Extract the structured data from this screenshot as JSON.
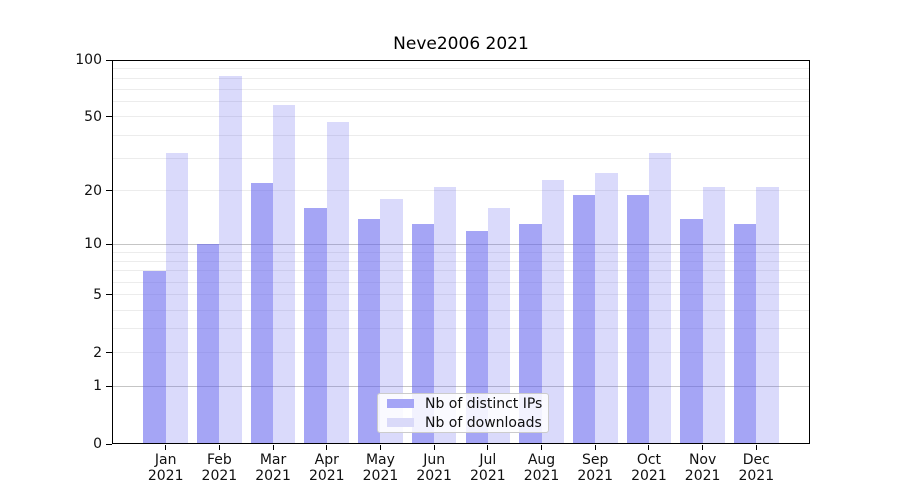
{
  "chart_data": {
    "type": "bar",
    "title": "Neve2006 2021",
    "categories": [
      "Jan",
      "Feb",
      "Mar",
      "Apr",
      "May",
      "Jun",
      "Jul",
      "Aug",
      "Sep",
      "Oct",
      "Nov",
      "Dec"
    ],
    "x_year_label": "2021",
    "series": [
      {
        "name": "Nb of distinct IPs",
        "values": [
          7,
          10,
          22,
          16,
          14,
          13,
          12,
          13,
          19,
          19,
          14,
          13
        ],
        "bar_color": "rgba(95,95,238,0.56)",
        "legend_swatch_color": "#a5a5f6"
      },
      {
        "name": "Nb of downloads",
        "values": [
          32,
          82,
          58,
          47,
          18,
          21,
          16,
          23,
          25,
          32,
          21,
          21
        ],
        "bar_color": "rgba(95,95,238,0.23)",
        "legend_swatch_color": "#dadaf9"
      }
    ],
    "yscale": "log1p",
    "ylim": [
      0,
      100
    ],
    "yticks": [
      0,
      1,
      2,
      5,
      10,
      20,
      50,
      100
    ],
    "ytick_labels": [
      "0",
      "1",
      "2",
      "5",
      "10",
      "20",
      "50",
      "100"
    ],
    "grid": {
      "major_lines": [
        1,
        10
      ],
      "minor_lines": [
        2,
        3,
        4,
        5,
        6,
        7,
        8,
        9,
        20,
        30,
        40,
        50,
        60,
        70,
        80,
        90
      ],
      "major_color": "#c5c5c5",
      "minor_color": "#ececec"
    },
    "legend": {
      "position": "lower-center",
      "entries": [
        "Nb of distinct IPs",
        "Nb of downloads"
      ]
    }
  }
}
